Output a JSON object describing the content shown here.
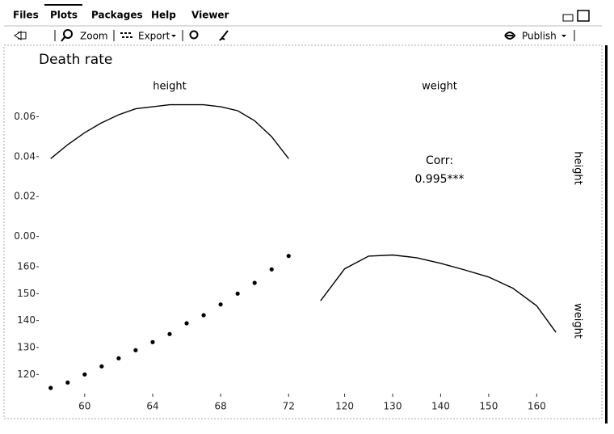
{
  "tabs": [
    "Files",
    "Plots",
    "Packages",
    "Help",
    "Viewer"
  ],
  "toolbar": {
    "zoom": "Zoom",
    "export": "Export",
    "publish": "Publish"
  },
  "chart_data": {
    "type": "pairs",
    "title": "Death rate",
    "variables": [
      "height",
      "weight"
    ],
    "correlation": {
      "label": "Corr:",
      "value": 0.995,
      "value_label": "0.995***"
    },
    "scatter": {
      "x": [
        58,
        59,
        60,
        61,
        62,
        63,
        64,
        65,
        66,
        67,
        68,
        69,
        70,
        71,
        72
      ],
      "values": [
        115,
        117,
        120,
        123,
        126,
        129,
        132,
        135,
        139,
        142,
        146,
        150,
        154,
        159,
        164
      ],
      "color": "#000000"
    },
    "height_density": {
      "x": [
        58,
        59,
        60,
        61,
        62,
        63,
        64,
        65,
        66,
        67,
        68,
        69,
        70,
        71,
        72
      ],
      "values": [
        0.039,
        0.046,
        0.052,
        0.057,
        0.061,
        0.064,
        0.065,
        0.066,
        0.066,
        0.066,
        0.065,
        0.063,
        0.058,
        0.05,
        0.039
      ],
      "ylim": [
        -0.003,
        0.078
      ],
      "yticks": [
        {
          "value": 0,
          "label": "0.00"
        },
        {
          "value": 0.02,
          "label": "0.02"
        },
        {
          "value": 0.04,
          "label": "0.04"
        },
        {
          "value": 0.06,
          "label": "0.06"
        }
      ]
    },
    "weight_density": {
      "x": [
        115,
        120,
        125,
        130,
        135,
        140,
        145,
        150,
        155,
        160,
        164
      ],
      "values": [
        0.0187,
        0.0245,
        0.0268,
        0.027,
        0.0265,
        0.0255,
        0.0243,
        0.023,
        0.021,
        0.0178,
        0.013
      ],
      "ylim": [
        0,
        0.03
      ]
    },
    "height_axis": {
      "xlim": [
        57.3,
        72.7
      ],
      "xticks": [
        60,
        64,
        68,
        72
      ]
    },
    "weight_axis": {
      "xlim": [
        112,
        166
      ],
      "ylim": [
        109,
        170.5
      ],
      "ticks": [
        120,
        130,
        140,
        150,
        160
      ]
    }
  }
}
